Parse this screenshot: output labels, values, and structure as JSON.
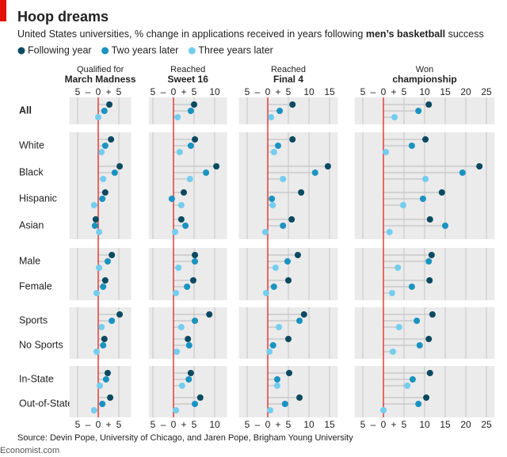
{
  "chart_data": {
    "type": "dot",
    "title": "Hoop dreams",
    "subtitle": [
      "United States universities, % change in applications received in years following ",
      "men’s basketball",
      " success"
    ],
    "axis_signs": [
      "–",
      "+"
    ],
    "categories": [
      "All",
      "White",
      "Black",
      "Hispanic",
      "Asian",
      "Male",
      "Female",
      "Sports",
      "No Sports",
      "In-State",
      "Out-of-State"
    ],
    "series": [
      {
        "name": "Following year",
        "color": "#0b4a60"
      },
      {
        "name": "Two years later",
        "color": "#1a93c0"
      },
      {
        "name": "Three years later",
        "color": "#74cdef"
      }
    ],
    "panels": [
      {
        "title_top": "Qualified for",
        "title_bottom": "March Madness",
        "xlim": [
          -7,
          8
        ],
        "xticks": [
          {
            "value": -5,
            "label": "5"
          },
          0,
          5
        ],
        "series": [
          {
            "values": [
              2.7,
              3.1,
              5.2,
              1.7,
              -0.6,
              3.3,
              1.7,
              5.2,
              1.5,
              2.3,
              2.9
            ]
          },
          {
            "values": [
              1.5,
              1.7,
              4.0,
              1.0,
              -0.8,
              2.3,
              1.2,
              3.3,
              1.2,
              1.9,
              1.0
            ]
          },
          {
            "values": [
              0,
              0.8,
              1.2,
              -1.0,
              0.2,
              0.2,
              -0.4,
              0.8,
              -0.4,
              0.4,
              -1.0
            ]
          }
        ]
      },
      {
        "title_top": "Reached",
        "title_bottom": "Sweet 16",
        "xlim": [
          -6,
          13
        ],
        "xticks": [
          {
            "value": -5,
            "label": "5"
          },
          0,
          5,
          10
        ],
        "series": [
          {
            "values": [
              5.0,
              5.2,
              10.4,
              2.5,
              1.9,
              5.2,
              4.8,
              8.7,
              3.5,
              4.2,
              6.5
            ]
          },
          {
            "values": [
              4.2,
              4.2,
              7.9,
              -0.4,
              2.9,
              5.2,
              3.3,
              5.2,
              3.8,
              3.7,
              5.2
            ]
          },
          {
            "values": [
              1.0,
              1.5,
              4.0,
              1.9,
              0.4,
              1.2,
              0.6,
              1.9,
              0.8,
              2.1,
              0.6
            ]
          }
        ]
      },
      {
        "title_top": "Reached",
        "title_bottom": "Final 4",
        "xlim": [
          -7,
          17
        ],
        "xticks": [
          {
            "value": -5,
            "label": "5"
          },
          0,
          5,
          10,
          15
        ],
        "series": [
          {
            "values": [
              6.0,
              6.0,
              14.6,
              8.1,
              5.8,
              7.3,
              5.0,
              8.8,
              5.0,
              5.2,
              7.7
            ]
          },
          {
            "values": [
              2.9,
              2.5,
              11.5,
              1.0,
              3.7,
              4.8,
              1.5,
              7.7,
              1.3,
              2.3,
              4.2
            ]
          },
          {
            "values": [
              0.8,
              1.5,
              3.7,
              1.2,
              -0.6,
              1.9,
              -0.4,
              2.7,
              0.4,
              2.3,
              0.6
            ]
          }
        ]
      },
      {
        "title_top": "Won",
        "title_bottom": "championship",
        "xlim": [
          -7,
          27
        ],
        "xticks": [
          {
            "value": -5,
            "label": "5"
          },
          0,
          5,
          10,
          15,
          20,
          25
        ],
        "series": [
          {
            "values": [
              11.0,
              10.2,
              23.3,
              14.2,
              11.3,
              11.7,
              11.2,
              11.9,
              11.0,
              11.3,
              10.4
            ]
          },
          {
            "values": [
              8.5,
              6.9,
              19.2,
              9.6,
              15.0,
              11.0,
              6.9,
              8.1,
              8.8,
              7.1,
              8.5
            ]
          },
          {
            "values": [
              2.7,
              0.6,
              10.2,
              4.8,
              1.5,
              3.5,
              2.1,
              3.8,
              2.3,
              5.8,
              0
            ]
          }
        ]
      }
    ],
    "source": "Source: Devin Pope, University of Chicago, and Jaren Pope, Brigham Young University",
    "footer": "Economist.com"
  }
}
